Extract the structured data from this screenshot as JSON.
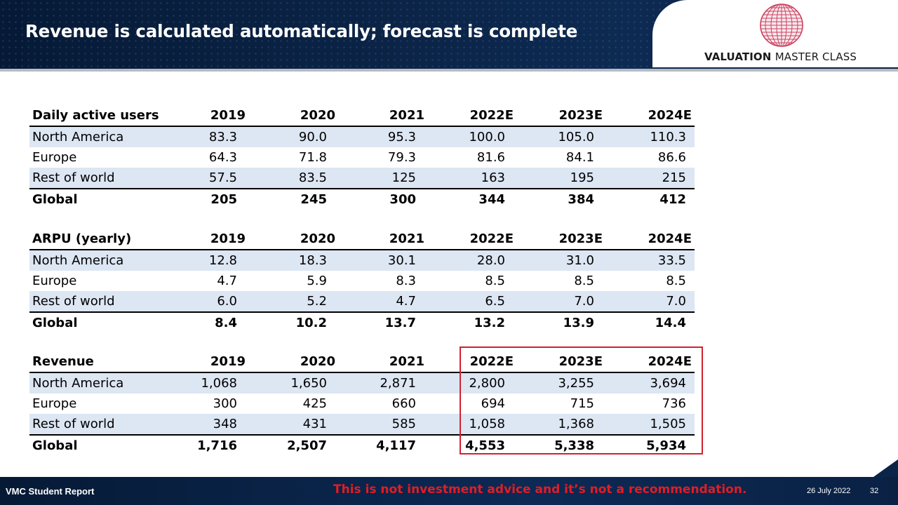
{
  "slide": {
    "title": "Revenue is calculated automatically; forecast is complete",
    "logo": {
      "brand_bold": "VALUATION",
      "brand_rest": "MASTER CLASS",
      "icon": "globe-icon"
    }
  },
  "tables": [
    {
      "header": [
        "Daily active users",
        "2019",
        "2020",
        "2021",
        "2022E",
        "2023E",
        "2024E"
      ],
      "rows": [
        [
          "North America",
          "83.3",
          "90.0",
          "95.3",
          "100.0",
          "105.0",
          "110.3"
        ],
        [
          "Europe",
          "64.3",
          "71.8",
          "79.3",
          "81.6",
          "84.1",
          "86.6"
        ],
        [
          "Rest of world",
          "57.5",
          "83.5",
          "125",
          "163",
          "195",
          "215"
        ]
      ],
      "total": [
        "Global",
        "205",
        "245",
        "300",
        "344",
        "384",
        "412"
      ]
    },
    {
      "header": [
        "ARPU (yearly)",
        "2019",
        "2020",
        "2021",
        "2022E",
        "2023E",
        "2024E"
      ],
      "rows": [
        [
          "North America",
          "12.8",
          "18.3",
          "30.1",
          "28.0",
          "31.0",
          "33.5"
        ],
        [
          "Europe",
          "4.7",
          "5.9",
          "8.3",
          "8.5",
          "8.5",
          "8.5"
        ],
        [
          "Rest of world",
          "6.0",
          "5.2",
          "4.7",
          "6.5",
          "7.0",
          "7.0"
        ]
      ],
      "total": [
        "Global",
        "8.4",
        "10.2",
        "13.7",
        "13.2",
        "13.9",
        "14.4"
      ]
    },
    {
      "header": [
        "Revenue",
        "2019",
        "2020",
        "2021",
        "2022E",
        "2023E",
        "2024E"
      ],
      "rows": [
        [
          "North America",
          "1,068",
          "1,650",
          "2,871",
          "2,800",
          "3,255",
          "3,694"
        ],
        [
          "Europe",
          "300",
          "425",
          "660",
          "694",
          "715",
          "736"
        ],
        [
          "Rest of world",
          "348",
          "431",
          "585",
          "1,058",
          "1,368",
          "1,505"
        ]
      ],
      "total": [
        "Global",
        "1,716",
        "2,507",
        "4,117",
        "4,553",
        "5,338",
        "5,934"
      ]
    }
  ],
  "colors": {
    "header_bg": "#0b2447",
    "row_shade": "#dde6f3",
    "highlight": "#d0222e",
    "disclaimer": "#e31c23"
  },
  "footer": {
    "report": "VMC Student Report",
    "disclaimer": "This is not investment advice and it’s not a recommendation.",
    "date": "26 July 2022",
    "page": "32"
  }
}
